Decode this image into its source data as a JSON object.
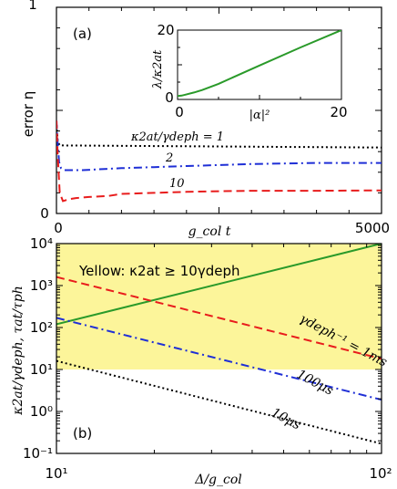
{
  "chart_data": [
    {
      "panel": "(a)",
      "type": "line",
      "ylabel": "error  η",
      "xlabel": "g_col t",
      "xlim": [
        0,
        5000
      ],
      "ylim": [
        0,
        1
      ],
      "x_ticks": [
        "0",
        "5000"
      ],
      "y_ticks": [
        "0",
        "1"
      ],
      "series": [
        {
          "name": "κ2at/γdeph = 1",
          "color": "#000000",
          "style": "dotted",
          "x": [
            0,
            20,
            50,
            5000
          ],
          "y": [
            0.45,
            0.35,
            0.33,
            0.32
          ]
        },
        {
          "name": "2",
          "color": "#1f2fd6",
          "style": "dashdot",
          "x": [
            0,
            20,
            40,
            70,
            120,
            200,
            400,
            700,
            1000,
            1500,
            2000,
            2500,
            3000,
            4000,
            5000
          ],
          "y": [
            0.45,
            0.34,
            0.25,
            0.22,
            0.21,
            0.21,
            0.21,
            0.215,
            0.22,
            0.225,
            0.23,
            0.235,
            0.24,
            0.245,
            0.245
          ]
        },
        {
          "name": "10",
          "color": "#e81c1c",
          "style": "dashed",
          "x": [
            0,
            20,
            50,
            100,
            200,
            300,
            500,
            800,
            1000,
            1500,
            2000,
            2500,
            3000,
            4000,
            5000
          ],
          "y": [
            0.45,
            0.28,
            0.1,
            0.06,
            0.07,
            0.075,
            0.08,
            0.085,
            0.095,
            0.1,
            0.105,
            0.108,
            0.11,
            0.11,
            0.112
          ]
        }
      ],
      "annotations": [
        "κ2at/γdeph = 1",
        "2",
        "10"
      ],
      "inset": {
        "type": "line",
        "xlabel": "|α|²",
        "ylabel": "λ/κ2at",
        "xlim": [
          0,
          20
        ],
        "ylim": [
          0,
          20
        ],
        "x_ticks": [
          "0",
          "20"
        ],
        "y_ticks": [
          "0",
          "20"
        ],
        "series": [
          {
            "color": "#2a9a2a",
            "x": [
              0,
              0.5,
              1,
              2,
              3,
              5,
              10,
              15,
              20
            ],
            "y": [
              1,
              1.1,
              1.4,
              2.0,
              2.7,
              4.5,
              9.8,
              15,
              20
            ]
          }
        ]
      }
    },
    {
      "panel": "(b)",
      "type": "line",
      "xlabel": "Δ/g_col",
      "ylabel": "κ2at/γdeph, τat/τph",
      "xscale": "log",
      "yscale": "log",
      "xlim": [
        10,
        100
      ],
      "ylim": [
        0.1,
        10000
      ],
      "x_ticks": [
        "10¹",
        "10²"
      ],
      "y_ticks": [
        "10⁻¹",
        "10⁰",
        "10¹",
        "10²",
        "10³",
        "10⁴"
      ],
      "shaded_region": {
        "label": "Yellow: κ2at ≥ 10γdeph",
        "ymin": 10,
        "ymax": 10000,
        "color": "#fcf59a"
      },
      "series": [
        {
          "name": "τat/τph",
          "color": "#2a9a2a",
          "style": "solid",
          "x": [
            10,
            100
          ],
          "y": [
            120,
            10000
          ]
        },
        {
          "name": "γdeph⁻¹ = 1ms",
          "color": "#e81c1c",
          "style": "dashed",
          "x": [
            10,
            100
          ],
          "y": [
            1600,
            18
          ]
        },
        {
          "name": "100μs",
          "color": "#1f2fd6",
          "style": "dashdot",
          "x": [
            10,
            100
          ],
          "y": [
            170,
            1.9
          ]
        },
        {
          "name": "10μs",
          "color": "#000000",
          "style": "dotted",
          "x": [
            10,
            100
          ],
          "y": [
            16,
            0.17
          ]
        }
      ],
      "annotations": [
        "γdeph⁻¹ = 1ms",
        "100μs",
        "10μs"
      ]
    }
  ]
}
